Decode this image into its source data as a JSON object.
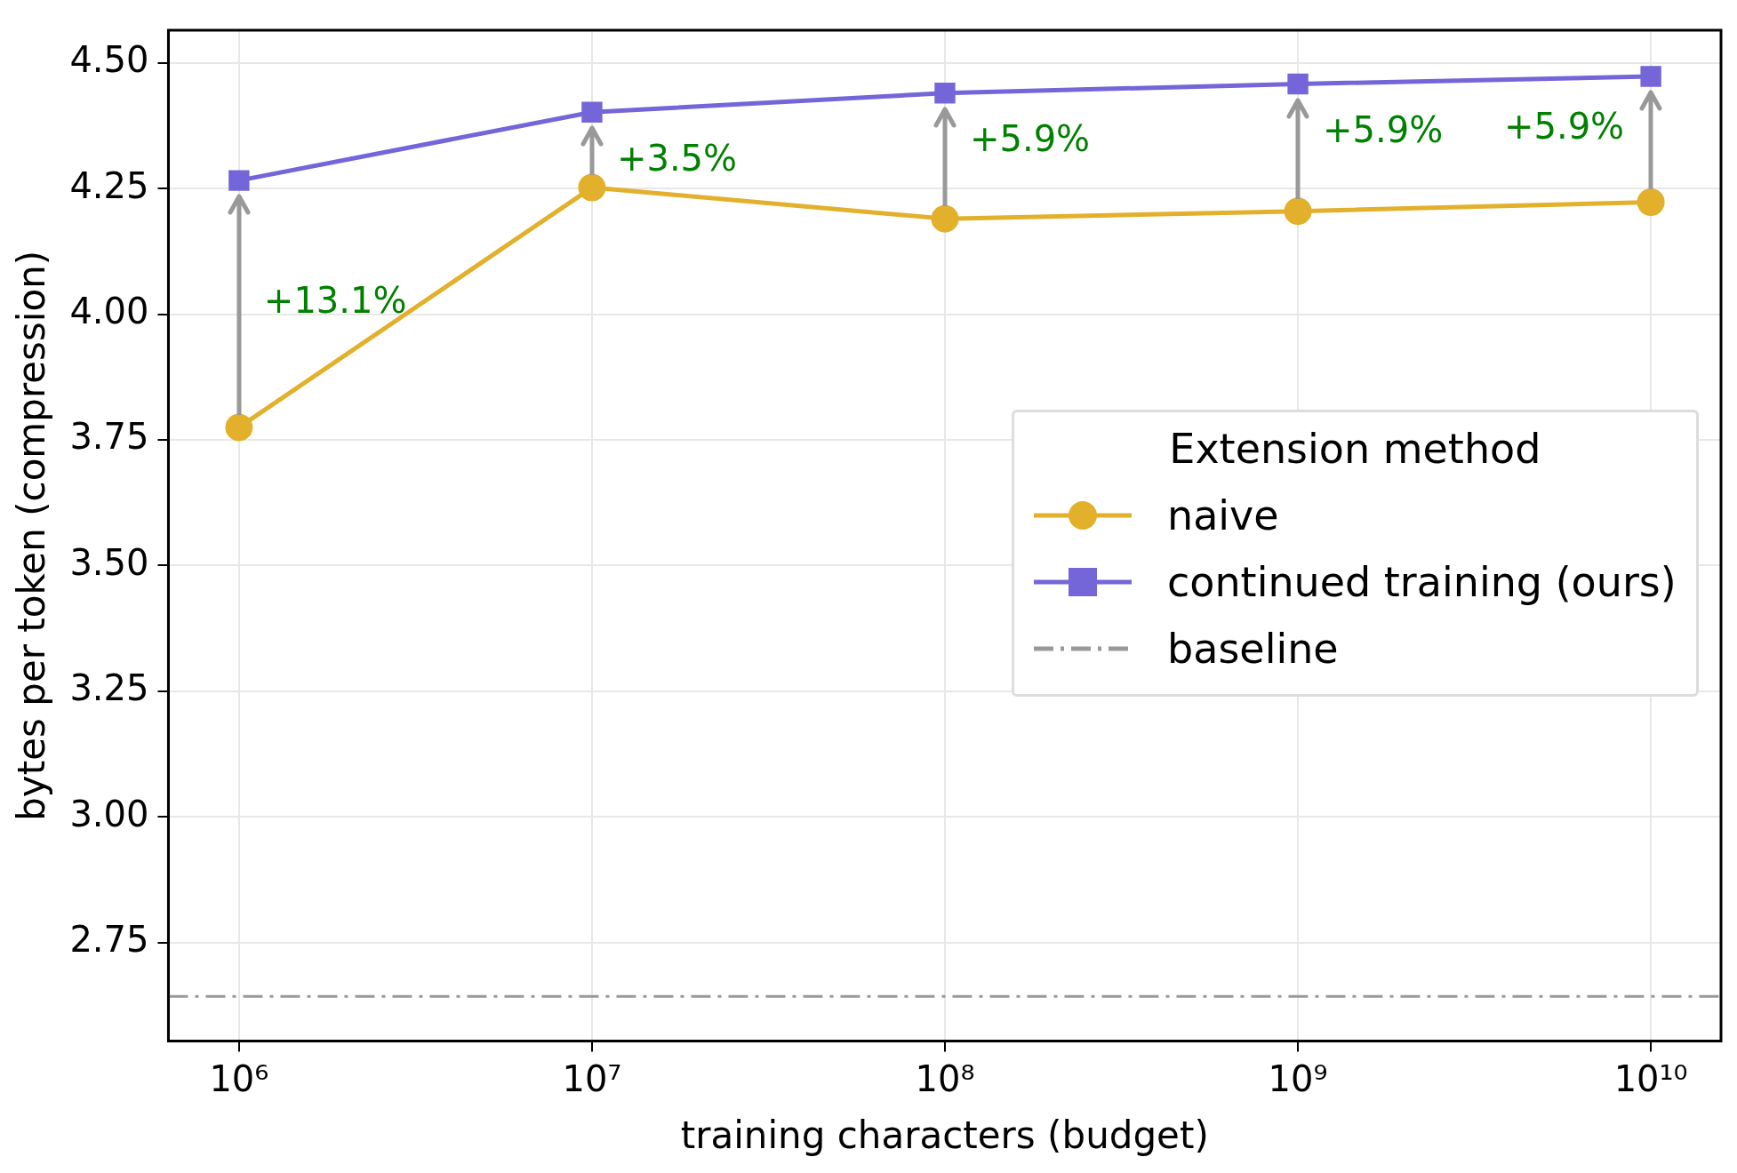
{
  "chart_data": {
    "type": "line",
    "xlabel": "training characters (budget)",
    "ylabel": "bytes per token (compression)",
    "legend_title": "Extension method",
    "log": "x",
    "grid": true,
    "legend": "center right",
    "x": [
      1000000,
      10000000,
      100000000,
      1000000000,
      10000000000
    ],
    "xlim": [
      631000,
      15800000000
    ],
    "xticks": [
      {
        "value": 1000000,
        "label": "10⁶"
      },
      {
        "value": 10000000,
        "label": "10⁷"
      },
      {
        "value": 100000000,
        "label": "10⁸"
      },
      {
        "value": 1000000000,
        "label": "10⁹"
      },
      {
        "value": 10000000000,
        "label": "10¹⁰"
      }
    ],
    "ylim": [
      2.554,
      4.565
    ],
    "yticks": [
      {
        "value": 2.75,
        "label": "2.75"
      },
      {
        "value": 3,
        "label": "3.00"
      },
      {
        "value": 3.25,
        "label": "3.25"
      },
      {
        "value": 3.5,
        "label": "3.50"
      },
      {
        "value": 3.75,
        "label": "3.75"
      },
      {
        "value": 4,
        "label": "4.00"
      },
      {
        "value": 4.25,
        "label": "4.25"
      },
      {
        "value": 4.5,
        "label": "4.50"
      }
    ],
    "series": [
      {
        "name": "naive",
        "color": "#e3b02c",
        "marker": "circle",
        "values": [
          3.775,
          4.252,
          4.19,
          4.205,
          4.223
        ]
      },
      {
        "name": "continued training (ours)",
        "color": "#7466d8",
        "marker": "square",
        "values": [
          4.266,
          4.402,
          4.44,
          4.458,
          4.473
        ]
      }
    ],
    "ref_lines": [
      {
        "axis": "y",
        "value": 2.643,
        "label": "baseline",
        "color": "#999999",
        "line_style": "dashdot"
      }
    ],
    "annotations": [
      {
        "text": "+13.1%",
        "x": 1000000,
        "y": 4.266
      },
      {
        "text": "+3.5%",
        "x": 10000000,
        "y": 4.402
      },
      {
        "text": "+5.9%",
        "x": 100000000,
        "y": 4.44
      },
      {
        "text": "+5.9%",
        "x": 1000000000,
        "y": 4.458
      },
      {
        "text": "+5.9%",
        "x": 10000000000,
        "y": 4.473
      }
    ]
  }
}
